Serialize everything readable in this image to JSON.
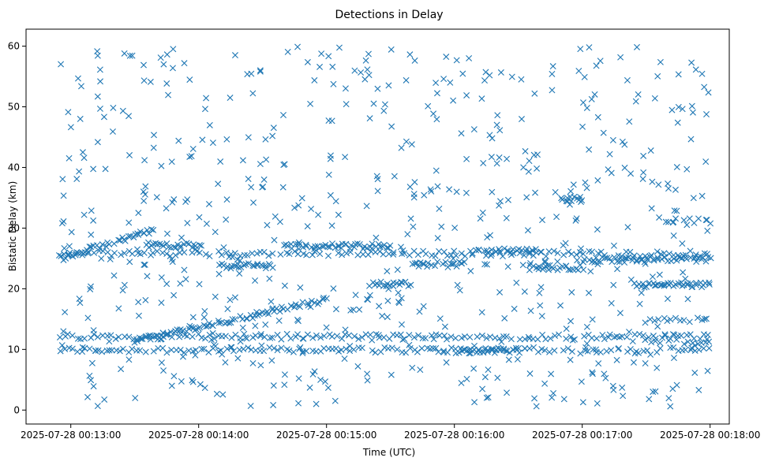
{
  "chart_data": {
    "type": "scatter",
    "title": "Detections in Delay",
    "xlabel": "Time (UTC)",
    "ylabel": "Bistatic Delay (km)",
    "x_axis_type": "time",
    "xlim": [
      "2025-07-28 00:12:39",
      "2025-07-28 00:18:09"
    ],
    "ylim": [
      -2.3,
      62.8
    ],
    "x_ticks": [
      "2025-07-28 00:13:00",
      "2025-07-28 00:14:00",
      "2025-07-28 00:15:00",
      "2025-07-28 00:16:00",
      "2025-07-28 00:17:00",
      "2025-07-28 00:18:00"
    ],
    "y_ticks": [
      0,
      10,
      20,
      30,
      40,
      50,
      60
    ],
    "marker": "x",
    "color": "#1f77b4",
    "grid": false,
    "series": [
      {
        "tracks": [
          {
            "x_start": "2025-07-28 00:12:55",
            "x_end": "2025-07-28 00:18:00",
            "y_start": 9.9,
            "y_end": 9.9,
            "spacing_s": 2
          },
          {
            "x_start": "2025-07-28 00:12:55",
            "x_end": "2025-07-28 00:18:00",
            "y_start": 12.1,
            "y_end": 12.1,
            "spacing_s": 2
          },
          {
            "x_start": "2025-07-28 00:12:55",
            "x_end": "2025-07-28 00:18:00",
            "y_start": 25.8,
            "y_end": 25.8,
            "spacing_s": 2
          },
          {
            "x_start": "2025-07-28 00:12:55",
            "x_end": "2025-07-28 00:13:40",
            "y_start": 25.0,
            "y_end": 29.8,
            "spacing_s": 1
          },
          {
            "x_start": "2025-07-28 00:13:30",
            "x_end": "2025-07-28 00:15:00",
            "y_start": 11.5,
            "y_end": 18.2,
            "spacing_s": 1
          },
          {
            "x_start": "2025-07-28 00:13:35",
            "x_end": "2025-07-28 00:14:00",
            "y_start": 27.2,
            "y_end": 27.2,
            "spacing_s": 1
          },
          {
            "x_start": "2025-07-28 00:14:10",
            "x_end": "2025-07-28 00:14:35",
            "y_start": 23.8,
            "y_end": 23.8,
            "spacing_s": 1
          },
          {
            "x_start": "2025-07-28 00:14:40",
            "x_end": "2025-07-28 00:15:30",
            "y_start": 27.0,
            "y_end": 27.0,
            "spacing_s": 1
          },
          {
            "x_start": "2025-07-28 00:15:20",
            "x_end": "2025-07-28 00:15:40",
            "y_start": 20.8,
            "y_end": 20.8,
            "spacing_s": 1
          },
          {
            "x_start": "2025-07-28 00:15:40",
            "x_end": "2025-07-28 00:16:05",
            "y_start": 24.0,
            "y_end": 24.0,
            "spacing_s": 1
          },
          {
            "x_start": "2025-07-28 00:16:10",
            "x_end": "2025-07-28 00:16:40",
            "y_start": 26.2,
            "y_end": 26.2,
            "spacing_s": 1
          },
          {
            "x_start": "2025-07-28 00:16:35",
            "x_end": "2025-07-28 00:17:00",
            "y_start": 23.5,
            "y_end": 23.5,
            "spacing_s": 1
          },
          {
            "x_start": "2025-07-28 00:16:50",
            "x_end": "2025-07-28 00:17:00",
            "y_start": 34.8,
            "y_end": 34.8,
            "spacing_s": 1
          },
          {
            "x_start": "2025-07-28 00:17:00",
            "x_end": "2025-07-28 00:18:00",
            "y_start": 24.8,
            "y_end": 24.8,
            "spacing_s": 1
          },
          {
            "x_start": "2025-07-28 00:17:25",
            "x_end": "2025-07-28 00:18:00",
            "y_start": 20.6,
            "y_end": 20.6,
            "spacing_s": 1
          },
          {
            "x_start": "2025-07-28 00:17:30",
            "x_end": "2025-07-28 00:18:00",
            "y_start": 14.8,
            "y_end": 14.8,
            "spacing_s": 2
          },
          {
            "x_start": "2025-07-28 00:17:30",
            "x_end": "2025-07-28 00:18:00",
            "y_start": 11.2,
            "y_end": 11.2,
            "spacing_s": 2
          },
          {
            "x_start": "2025-07-28 00:17:40",
            "x_end": "2025-07-28 00:18:00",
            "y_start": 31.2,
            "y_end": 31.2,
            "spacing_s": 2
          },
          {
            "x_start": "2025-07-28 00:16:00",
            "x_end": "2025-07-28 00:16:30",
            "y_start": 9.8,
            "y_end": 9.8,
            "spacing_s": 1
          }
        ],
        "scatter_clutter": {
          "x_start": "2025-07-28 00:12:55",
          "x_end": "2025-07-28 00:18:00",
          "y_min": 0.5,
          "y_max": 60,
          "count": 650
        }
      }
    ]
  }
}
